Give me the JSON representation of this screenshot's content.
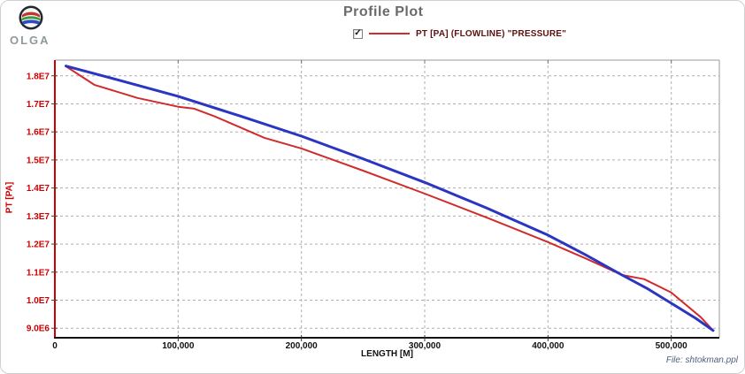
{
  "logo": {
    "text": "OLGA"
  },
  "title": "Profile Plot",
  "legend": {
    "checkbox_checked": true,
    "label": "PT [PA] (FLOWLINE) \"PRESSURE\"",
    "line_color": "#d22b2b"
  },
  "icons": {
    "checkbox_check": "✓"
  },
  "footer": {
    "file_label": "File: shtokman.ppl"
  },
  "chart_data": {
    "type": "line",
    "title": "Profile Plot",
    "xlabel": "LENGTH [M]",
    "ylabel": "PT [PA]",
    "xlim": [
      0,
      539000
    ],
    "ylim": [
      8660000,
      18560000
    ],
    "grid": true,
    "legend_position": "top-center",
    "x_ticks": [
      0,
      100000,
      200000,
      300000,
      400000,
      500000
    ],
    "x_tick_labels": [
      "0",
      "100,000",
      "200,000",
      "300,000",
      "400,000",
      "500,000"
    ],
    "y_ticks": [
      9000000,
      10000000,
      11000000,
      12000000,
      13000000,
      14000000,
      15000000,
      16000000,
      17000000,
      18000000
    ],
    "y_tick_labels": [
      "9.0E6",
      "1.0E7",
      "1.1E7",
      "1.2E7",
      "1.3E7",
      "1.4E7",
      "1.5E7",
      "1.6E7",
      "1.7E7",
      "1.8E7"
    ],
    "axis_colors": {
      "y_axis": "#cc0000",
      "x_axis": "#111111",
      "border": "#9a9a9a",
      "grid": "#adadad",
      "y_tick_label": "#cc0000",
      "x_tick_label": "#111111"
    },
    "series": [
      {
        "name": "PT [PA] (FLOWLINE) \"PRESSURE\"",
        "color": "#d22b2b",
        "width": 2,
        "points": [
          [
            9000,
            18340000
          ],
          [
            32000,
            17680000
          ],
          [
            67000,
            17210000
          ],
          [
            100000,
            16900000
          ],
          [
            113000,
            16830000
          ],
          [
            130000,
            16550000
          ],
          [
            170000,
            15790000
          ],
          [
            200000,
            15410000
          ],
          [
            250000,
            14620000
          ],
          [
            300000,
            13800000
          ],
          [
            350000,
            12950000
          ],
          [
            400000,
            12070000
          ],
          [
            430000,
            11500000
          ],
          [
            460000,
            10900000
          ],
          [
            478000,
            10750000
          ],
          [
            500000,
            10270000
          ],
          [
            524000,
            9390000
          ],
          [
            534000,
            8920000
          ]
        ]
      },
      {
        "name": "",
        "color": "#2a35c0",
        "width": 3,
        "points": [
          [
            9000,
            18350000
          ],
          [
            50000,
            17870000
          ],
          [
            100000,
            17270000
          ],
          [
            150000,
            16570000
          ],
          [
            200000,
            15850000
          ],
          [
            250000,
            15040000
          ],
          [
            300000,
            14200000
          ],
          [
            350000,
            13290000
          ],
          [
            400000,
            12320000
          ],
          [
            430000,
            11630000
          ],
          [
            460000,
            10900000
          ],
          [
            480000,
            10430000
          ],
          [
            500000,
            9890000
          ],
          [
            520000,
            9350000
          ],
          [
            534000,
            8920000
          ]
        ]
      }
    ]
  }
}
